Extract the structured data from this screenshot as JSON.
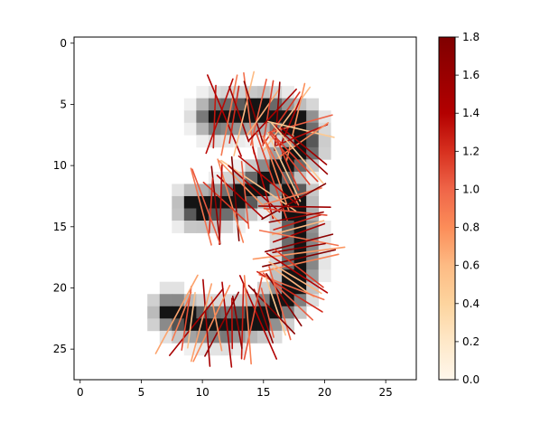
{
  "chart_data": {
    "type": "heatmap",
    "description": "",
    "image": {
      "shape": [
        28,
        28
      ],
      "x_ticks": [
        0,
        5,
        10,
        15,
        20,
        25
      ],
      "y_ticks": [
        0,
        5,
        10,
        15,
        20,
        25
      ],
      "x_tick_labels": [
        "0",
        "5",
        "10",
        "15",
        "20",
        "25"
      ],
      "y_tick_labels": [
        "0",
        "5",
        "10",
        "15",
        "20",
        "25"
      ],
      "xlim": [
        -0.5,
        27.5
      ],
      "ylim": [
        27.5,
        -0.5
      ],
      "grid": false,
      "cmap": "gray_r",
      "strokes": [
        {
          "points": [
            [
              11,
              6
            ],
            [
              15,
              5.6
            ],
            [
              18,
              6.6
            ],
            [
              18.3,
              8.4
            ],
            [
              16.4,
              10.4
            ],
            [
              13.5,
              12.4
            ],
            [
              11.5,
              13.2
            ],
            [
              9.5,
              13.4
            ]
          ]
        },
        {
          "points": [
            [
              17.4,
              12.5
            ],
            [
              17.9,
              15.5
            ],
            [
              17.9,
              18.4
            ],
            [
              17.0,
              20.7
            ],
            [
              15.0,
              22.3
            ],
            [
              12,
              23.0
            ],
            [
              9.5,
              22.8
            ],
            [
              7.5,
              22.0
            ]
          ]
        }
      ]
    },
    "overlay": {
      "type": "orientation-segments",
      "value_range": [
        0.0,
        1.8
      ]
    },
    "colorbar": {
      "cmap": "OrRd",
      "range": [
        0.0,
        1.8
      ],
      "ticks": [
        0.0,
        0.2,
        0.4,
        0.6,
        0.8,
        1.0,
        1.2,
        1.4,
        1.6,
        1.8
      ],
      "tick_labels": [
        "0.0",
        "0.2",
        "0.4",
        "0.6",
        "0.8",
        "1.0",
        "1.2",
        "1.4",
        "1.6",
        "1.8"
      ],
      "colors": {
        "0.0": "#fff7ec",
        "0.2": "#fee8c8",
        "0.4": "#fdd49e",
        "0.6": "#fdbb84",
        "0.8": "#fc8d59",
        "1.0": "#ef6548",
        "1.2": "#d7301f",
        "1.4": "#b30000",
        "1.8": "#7f0000"
      }
    }
  }
}
